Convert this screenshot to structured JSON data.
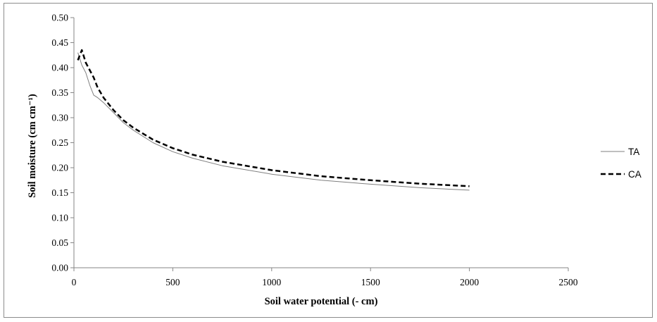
{
  "chart_data": {
    "type": "line",
    "title": "",
    "xlabel": "Soil water potential (- cm)",
    "ylabel": "Soil moisture (cm cm⁻¹)",
    "xlim": [
      0,
      2500
    ],
    "ylim": [
      0,
      0.5
    ],
    "x_ticks": [
      0,
      500,
      1000,
      1500,
      2000,
      2500
    ],
    "x_tick_labels": [
      "0",
      "500",
      "1000",
      "1500",
      "2000",
      "2500"
    ],
    "y_ticks": [
      0,
      0.05,
      0.1,
      0.15,
      0.2,
      0.25,
      0.3,
      0.35,
      0.4,
      0.45,
      0.5
    ],
    "y_tick_labels": [
      "0.00",
      "0.05",
      "0.10",
      "0.15",
      "0.20",
      "0.25",
      "0.30",
      "0.35",
      "0.40",
      "0.45",
      "0.50"
    ],
    "grid": false,
    "legend_position": "right",
    "series": [
      {
        "name": "TA",
        "style": "solid-thin",
        "color": "#7f7f7f",
        "x": [
          20,
          40,
          60,
          80,
          100,
          120,
          150,
          200,
          250,
          300,
          400,
          500,
          600,
          750,
          1000,
          1250,
          1500,
          1750,
          2000
        ],
        "y": [
          0.43,
          0.405,
          0.39,
          0.365,
          0.345,
          0.34,
          0.33,
          0.31,
          0.29,
          0.275,
          0.25,
          0.232,
          0.219,
          0.204,
          0.187,
          0.175,
          0.167,
          0.16,
          0.155
        ]
      },
      {
        "name": "CA",
        "style": "dashed",
        "color": "#000000",
        "x": [
          20,
          40,
          60,
          80,
          100,
          120,
          150,
          200,
          250,
          300,
          400,
          500,
          600,
          750,
          1000,
          1250,
          1500,
          1750,
          2000
        ],
        "y": [
          0.415,
          0.435,
          0.41,
          0.395,
          0.38,
          0.36,
          0.34,
          0.315,
          0.295,
          0.28,
          0.256,
          0.239,
          0.226,
          0.212,
          0.195,
          0.183,
          0.175,
          0.168,
          0.163
        ]
      }
    ]
  }
}
